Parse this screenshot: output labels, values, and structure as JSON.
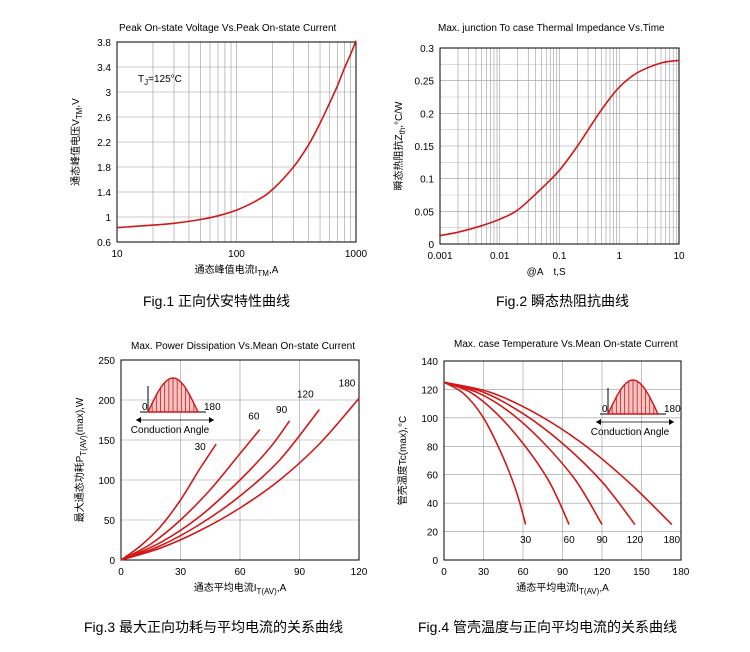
{
  "captions": {
    "fig1": "Fig.1  正向伏安特性曲线",
    "fig2": "Fig.2  瞬态热阻抗曲线",
    "fig3": "Fig.3  最大正向功耗与平均电流的关系曲线",
    "fig4": "Fig.4  管壳温度与正向平均电流的关系曲线"
  },
  "chart_data": [
    {
      "type": "line",
      "title": "Peak On-state Voltage Vs.Peak On-state Current",
      "xlabel": "通态峰值电流I",
      "xlabel_sub": "TM",
      "xlabel_unit": ",A",
      "ylabel": "通态峰值电压V",
      "ylabel_sub": "TM",
      "ylabel_unit": ",V",
      "xscale": "log",
      "xlim": [
        10,
        1000
      ],
      "ylim": [
        0.6,
        3.8
      ],
      "xticks": [
        10,
        100,
        1000
      ],
      "xtick_labels": [
        "10",
        "100",
        "1000"
      ],
      "yticks": [
        0.6,
        1,
        1.4,
        1.8,
        2.2,
        2.6,
        3,
        3.4,
        3.8
      ],
      "ytick_labels": [
        "0.6",
        "1",
        "1.4",
        "1.8",
        "2.2",
        "2.6",
        "3",
        "3.4",
        "3.8"
      ],
      "annotation": "T",
      "annotation_sub": "J",
      "annotation_rest": "=125°C",
      "series": [
        {
          "name": "VTM",
          "x": [
            10,
            20,
            30,
            50,
            70,
            100,
            150,
            200,
            300,
            400,
            500,
            600,
            700,
            800,
            900,
            1000
          ],
          "y": [
            0.83,
            0.87,
            0.9,
            0.96,
            1.02,
            1.11,
            1.27,
            1.44,
            1.8,
            2.15,
            2.5,
            2.82,
            3.1,
            3.38,
            3.6,
            3.82
          ]
        }
      ]
    },
    {
      "type": "line",
      "title": "Max. junction To case Thermal Impedance Vs.Time",
      "xlabel": "t,S",
      "xlabel_prefix": "@A",
      "ylabel": "瞬态热阻抗Z",
      "ylabel_sub": "th",
      "ylabel_unit": ",°C/W",
      "xscale": "log",
      "xlim": [
        0.001,
        10
      ],
      "ylim": [
        0,
        0.3
      ],
      "xticks": [
        0.001,
        0.01,
        0.1,
        1,
        10
      ],
      "xtick_labels": [
        "0.001",
        "0.01",
        "0.1",
        "1",
        "10"
      ],
      "yticks": [
        0,
        0.05,
        0.1,
        0.15,
        0.2,
        0.25,
        0.3
      ],
      "ytick_labels": [
        "0",
        "0.05",
        "0.1",
        "0.15",
        "0.2",
        "0.25",
        "0.3"
      ],
      "series": [
        {
          "name": "Zth",
          "x": [
            0.001,
            0.002,
            0.005,
            0.01,
            0.02,
            0.05,
            0.1,
            0.2,
            0.5,
            1,
            2,
            5,
            10
          ],
          "y": [
            0.013,
            0.018,
            0.028,
            0.038,
            0.052,
            0.085,
            0.113,
            0.15,
            0.205,
            0.24,
            0.262,
            0.277,
            0.281
          ]
        }
      ]
    },
    {
      "type": "line",
      "title": "Max. Power Dissipation Vs.Mean On-state Current",
      "xlabel": "通态平均电流I",
      "xlabel_sub": "T(AV)",
      "xlabel_unit": ",A",
      "ylabel": "最大通态功耗P",
      "ylabel_sub": "T(AV)",
      "ylabel_unit": "(max),W",
      "xlim": [
        0,
        120
      ],
      "ylim": [
        0,
        250
      ],
      "xticks": [
        0,
        30,
        60,
        90,
        120
      ],
      "xtick_labels": [
        "0",
        "30",
        "60",
        "90",
        "120"
      ],
      "yticks": [
        0,
        50,
        100,
        150,
        200,
        250
      ],
      "ytick_labels": [
        "0",
        "50",
        "100",
        "150",
        "200",
        "250"
      ],
      "inset": {
        "start_label": "0",
        "end_label": "180",
        "caption": "Conduction Angle"
      },
      "series": [
        {
          "name": "30",
          "x": [
            0,
            10,
            20,
            30,
            40,
            48
          ],
          "y": [
            0,
            18,
            42,
            75,
            115,
            145
          ]
        },
        {
          "name": "60",
          "x": [
            0,
            15,
            30,
            45,
            60,
            70
          ],
          "y": [
            0,
            20,
            50,
            88,
            133,
            163
          ]
        },
        {
          "name": "90",
          "x": [
            0,
            20,
            40,
            60,
            75,
            85
          ],
          "y": [
            0,
            22,
            55,
            100,
            140,
            174
          ]
        },
        {
          "name": "120",
          "x": [
            0,
            20,
            40,
            60,
            80,
            100
          ],
          "y": [
            0,
            18,
            45,
            80,
            125,
            188
          ]
        },
        {
          "name": "180",
          "x": [
            0,
            20,
            40,
            60,
            80,
            100,
            120
          ],
          "y": [
            0,
            15,
            37,
            65,
            100,
            145,
            202
          ]
        }
      ]
    },
    {
      "type": "line",
      "title": "Max. case Temperature Vs.Mean On-state Current",
      "xlabel": "通态平均电流I",
      "xlabel_sub": "T(AV)",
      "xlabel_unit": ",A",
      "ylabel": "管壳温度Tc(max),°C",
      "xlim": [
        0,
        180
      ],
      "ylim": [
        0,
        140
      ],
      "xticks": [
        0,
        30,
        60,
        90,
        120,
        150,
        180
      ],
      "xtick_labels": [
        "0",
        "30",
        "60",
        "90",
        "120",
        "150",
        "180"
      ],
      "yticks": [
        0,
        20,
        40,
        60,
        80,
        100,
        120,
        140
      ],
      "ytick_labels": [
        "0",
        "20",
        "40",
        "60",
        "80",
        "100",
        "120",
        "140"
      ],
      "inset": {
        "start_label": "0",
        "end_label": "180",
        "caption": "Conduction Angle"
      },
      "series": [
        {
          "name": "30",
          "x": [
            0,
            15,
            30,
            45,
            55,
            62
          ],
          "y": [
            125,
            117,
            100,
            72,
            48,
            25
          ]
        },
        {
          "name": "60",
          "x": [
            0,
            20,
            40,
            60,
            80,
            95
          ],
          "y": [
            125,
            118,
            103,
            82,
            55,
            25
          ]
        },
        {
          "name": "90",
          "x": [
            0,
            25,
            50,
            75,
            100,
            120
          ],
          "y": [
            125,
            118,
            104,
            83,
            56,
            25
          ]
        },
        {
          "name": "120",
          "x": [
            0,
            30,
            60,
            90,
            120,
            145
          ],
          "y": [
            125,
            118,
            103,
            82,
            55,
            25
          ]
        },
        {
          "name": "180",
          "x": [
            0,
            35,
            70,
            105,
            140,
            173
          ],
          "y": [
            125,
            118,
            103,
            82,
            55,
            25
          ]
        }
      ]
    }
  ]
}
